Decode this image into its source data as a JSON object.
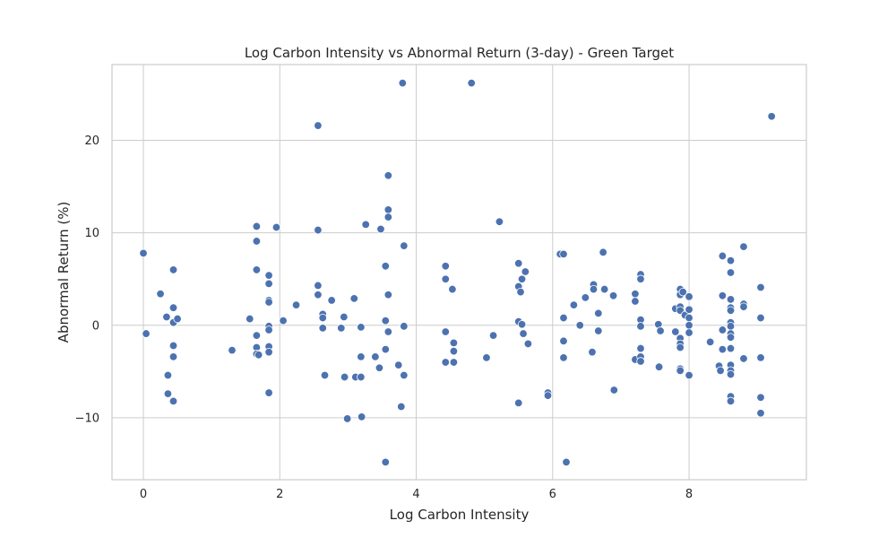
{
  "chart_data": {
    "type": "scatter",
    "title": "Log Carbon Intensity vs Abnormal Return (3-day) - Green Target",
    "xlabel": "Log Carbon Intensity",
    "ylabel": "Abnormal Return (%)",
    "xlim": [
      -0.46,
      9.72
    ],
    "ylim": [
      -16.7,
      28.2
    ],
    "xticks": [
      0,
      2,
      4,
      6,
      8
    ],
    "yticks": [
      -10,
      0,
      10,
      20
    ],
    "grid": true,
    "point_color": "#4c72b0",
    "points": [
      [
        0.0,
        7.8
      ],
      [
        0.04,
        -0.9
      ],
      [
        0.25,
        3.4
      ],
      [
        0.34,
        0.9
      ],
      [
        0.36,
        -5.4
      ],
      [
        0.36,
        -7.4
      ],
      [
        0.44,
        6.0
      ],
      [
        0.44,
        1.9
      ],
      [
        0.44,
        0.3
      ],
      [
        0.44,
        -2.2
      ],
      [
        0.44,
        -3.4
      ],
      [
        0.44,
        -8.2
      ],
      [
        0.5,
        0.7
      ],
      [
        1.3,
        -2.7
      ],
      [
        1.56,
        0.7
      ],
      [
        1.66,
        10.7
      ],
      [
        1.66,
        9.1
      ],
      [
        1.66,
        6.0
      ],
      [
        1.66,
        -1.1
      ],
      [
        1.66,
        -2.4
      ],
      [
        1.66,
        -3.1
      ],
      [
        1.69,
        -3.2
      ],
      [
        1.84,
        5.4
      ],
      [
        1.84,
        4.5
      ],
      [
        1.84,
        2.7
      ],
      [
        1.84,
        2.5
      ],
      [
        1.84,
        -0.1
      ],
      [
        1.84,
        -0.5
      ],
      [
        1.84,
        -2.3
      ],
      [
        1.84,
        -2.9
      ],
      [
        1.84,
        -7.3
      ],
      [
        1.95,
        10.6
      ],
      [
        2.05,
        0.5
      ],
      [
        2.24,
        2.2
      ],
      [
        2.56,
        21.6
      ],
      [
        2.56,
        10.3
      ],
      [
        2.56,
        4.3
      ],
      [
        2.56,
        3.3
      ],
      [
        2.63,
        1.2
      ],
      [
        2.63,
        0.8
      ],
      [
        2.63,
        -0.3
      ],
      [
        2.66,
        -5.4
      ],
      [
        2.76,
        2.7
      ],
      [
        2.9,
        -0.3
      ],
      [
        2.94,
        0.9
      ],
      [
        2.95,
        -5.6
      ],
      [
        2.99,
        -10.1
      ],
      [
        3.09,
        2.9
      ],
      [
        3.11,
        -5.6
      ],
      [
        3.19,
        -0.2
      ],
      [
        3.19,
        -3.4
      ],
      [
        3.19,
        -5.6
      ],
      [
        3.2,
        -9.9
      ],
      [
        3.26,
        10.9
      ],
      [
        3.4,
        -3.4
      ],
      [
        3.46,
        -4.6
      ],
      [
        3.48,
        10.4
      ],
      [
        3.55,
        6.4
      ],
      [
        3.55,
        0.5
      ],
      [
        3.55,
        -2.6
      ],
      [
        3.55,
        -14.8
      ],
      [
        3.59,
        16.2
      ],
      [
        3.59,
        12.5
      ],
      [
        3.59,
        11.7
      ],
      [
        3.59,
        3.3
      ],
      [
        3.59,
        -0.7
      ],
      [
        3.74,
        -4.3
      ],
      [
        3.78,
        -8.8
      ],
      [
        3.8,
        26.2
      ],
      [
        3.82,
        8.6
      ],
      [
        3.82,
        -0.1
      ],
      [
        3.82,
        -5.4
      ],
      [
        4.43,
        6.4
      ],
      [
        4.43,
        5.0
      ],
      [
        4.43,
        -0.7
      ],
      [
        4.43,
        -4.0
      ],
      [
        4.53,
        3.9
      ],
      [
        4.55,
        -1.9
      ],
      [
        4.55,
        -2.8
      ],
      [
        4.55,
        -4.0
      ],
      [
        4.81,
        26.2
      ],
      [
        5.03,
        -3.5
      ],
      [
        5.13,
        -1.1
      ],
      [
        5.22,
        11.2
      ],
      [
        5.5,
        6.7
      ],
      [
        5.5,
        4.2
      ],
      [
        5.5,
        0.4
      ],
      [
        5.5,
        -8.4
      ],
      [
        5.53,
        3.6
      ],
      [
        5.55,
        0.1
      ],
      [
        5.55,
        5.0
      ],
      [
        5.57,
        -0.9
      ],
      [
        5.6,
        5.8
      ],
      [
        5.64,
        -2.0
      ],
      [
        5.93,
        -7.3
      ],
      [
        5.93,
        -7.6
      ],
      [
        6.11,
        7.7
      ],
      [
        6.16,
        7.7
      ],
      [
        6.16,
        0.8
      ],
      [
        6.16,
        -1.7
      ],
      [
        6.16,
        -3.5
      ],
      [
        6.2,
        -14.8
      ],
      [
        6.31,
        2.2
      ],
      [
        6.4,
        0.0
      ],
      [
        6.48,
        3.0
      ],
      [
        6.58,
        -2.9
      ],
      [
        6.6,
        4.4
      ],
      [
        6.6,
        3.9
      ],
      [
        6.67,
        1.3
      ],
      [
        6.67,
        -0.6
      ],
      [
        6.74,
        7.9
      ],
      [
        6.76,
        3.9
      ],
      [
        6.89,
        3.2
      ],
      [
        6.9,
        -7.0
      ],
      [
        7.21,
        3.4
      ],
      [
        7.21,
        2.6
      ],
      [
        7.21,
        -3.7
      ],
      [
        7.29,
        5.5
      ],
      [
        7.29,
        5.0
      ],
      [
        7.29,
        0.6
      ],
      [
        7.29,
        -0.1
      ],
      [
        7.29,
        -2.5
      ],
      [
        7.29,
        -3.4
      ],
      [
        7.29,
        -3.9
      ],
      [
        7.55,
        0.1
      ],
      [
        7.56,
        -4.5
      ],
      [
        7.58,
        -0.6
      ],
      [
        7.8,
        1.8
      ],
      [
        7.8,
        -0.7
      ],
      [
        7.87,
        3.9
      ],
      [
        7.87,
        3.3
      ],
      [
        7.87,
        2.0
      ],
      [
        7.87,
        1.6
      ],
      [
        7.87,
        -1.4
      ],
      [
        7.87,
        -2.0
      ],
      [
        7.87,
        -2.4
      ],
      [
        7.87,
        -4.7
      ],
      [
        7.87,
        -4.9
      ],
      [
        7.91,
        3.6
      ],
      [
        7.94,
        1.1
      ],
      [
        8.0,
        3.1
      ],
      [
        8.0,
        1.7
      ],
      [
        8.0,
        0.8
      ],
      [
        8.0,
        0.0
      ],
      [
        8.0,
        -0.8
      ],
      [
        8.0,
        -5.4
      ],
      [
        8.31,
        -1.8
      ],
      [
        8.44,
        -4.4
      ],
      [
        8.46,
        -4.9
      ],
      [
        8.49,
        7.5
      ],
      [
        8.49,
        3.2
      ],
      [
        8.49,
        -0.5
      ],
      [
        8.49,
        -2.6
      ],
      [
        8.61,
        7.0
      ],
      [
        8.61,
        5.7
      ],
      [
        8.61,
        2.8
      ],
      [
        8.61,
        1.9
      ],
      [
        8.61,
        1.6
      ],
      [
        8.61,
        0.3
      ],
      [
        8.61,
        -0.1
      ],
      [
        8.61,
        -0.9
      ],
      [
        8.61,
        -1.3
      ],
      [
        8.61,
        -2.5
      ],
      [
        8.61,
        -4.3
      ],
      [
        8.61,
        -4.9
      ],
      [
        8.61,
        -5.3
      ],
      [
        8.61,
        -7.7
      ],
      [
        8.61,
        -8.2
      ],
      [
        8.8,
        8.5
      ],
      [
        8.8,
        2.3
      ],
      [
        8.8,
        2.0
      ],
      [
        8.8,
        -3.6
      ],
      [
        9.05,
        4.1
      ],
      [
        9.05,
        0.8
      ],
      [
        9.05,
        -3.5
      ],
      [
        9.05,
        -7.8
      ],
      [
        9.05,
        -9.5
      ],
      [
        9.21,
        22.6
      ]
    ]
  }
}
